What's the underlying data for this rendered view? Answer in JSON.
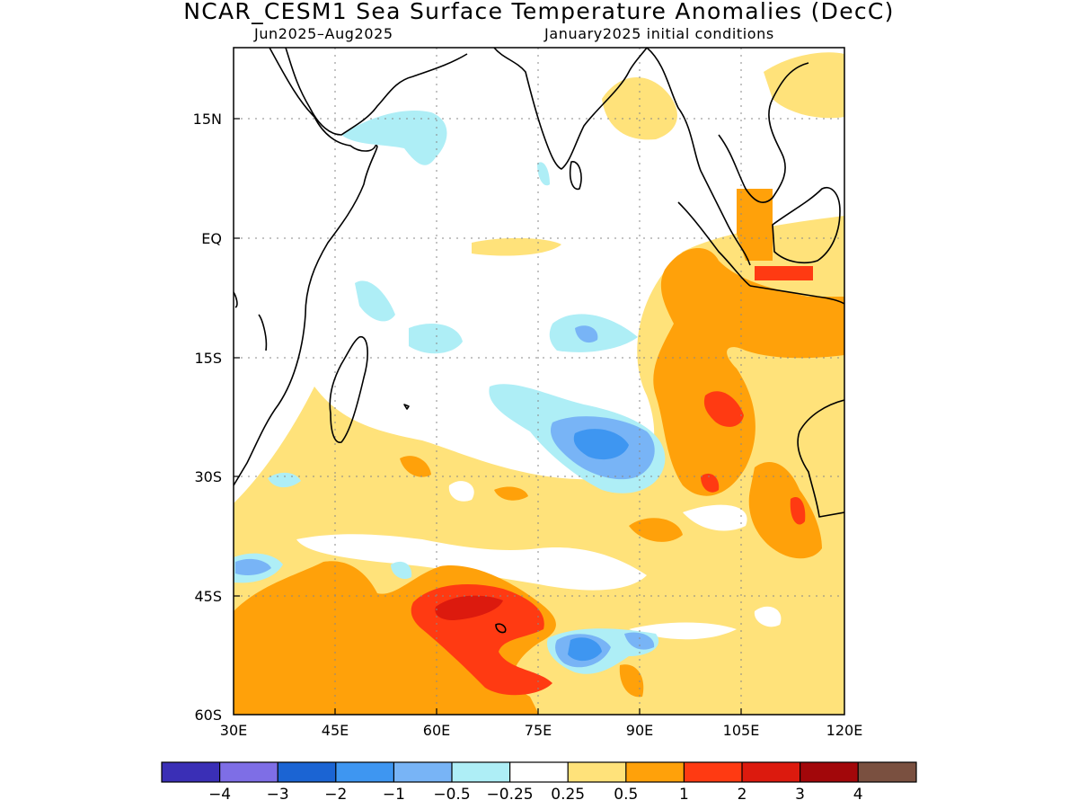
{
  "title": "NCAR_CESM1 Sea Surface Temperature Anomalies (DecC)",
  "subtitle_left": "Jun2025–Aug2025",
  "subtitle_right": "January2025 initial conditions",
  "map": {
    "lon_range": [
      30,
      120
    ],
    "lat_range": [
      -60,
      25
    ],
    "x_ticks": [
      "30E",
      "45E",
      "60E",
      "75E",
      "90E",
      "105E",
      "120E"
    ],
    "y_ticks": [
      "15N",
      "EQ",
      "15S",
      "30S",
      "45S",
      "60S"
    ]
  },
  "colorbar": {
    "labels": [
      "−4",
      "−3",
      "−2",
      "−1",
      "−0.5",
      "−0.25",
      "0.25",
      "0.5",
      "1",
      "2",
      "3",
      "4"
    ],
    "colors": [
      "#3a2fb6",
      "#7e6ee6",
      "#1b64d3",
      "#3e96f1",
      "#78b4f6",
      "#aeeef6",
      "#ffffff",
      "#ffe27a",
      "#ffa10a",
      "#ff3a12",
      "#dc1a0e",
      "#a2070a",
      "#7a5040"
    ]
  },
  "colors": {
    "pos_025": "#ffe27a",
    "pos_05": "#ffa10a",
    "pos_1": "#ff3a12",
    "pos_2": "#dc1a0e",
    "neg_025": "#aeeef6",
    "neg_05": "#78b4f6",
    "neg_1": "#3e96f1"
  }
}
